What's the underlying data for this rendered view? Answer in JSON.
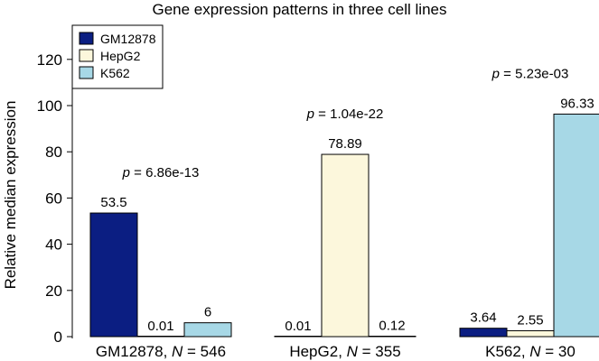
{
  "chart_data": {
    "type": "bar",
    "title": "Gene expression patterns in three cell lines",
    "xlabel": "",
    "ylabel": "Relative median expression",
    "ylim": [
      0,
      130
    ],
    "yticks": [
      0,
      20,
      40,
      60,
      80,
      100,
      120
    ],
    "grid": false,
    "legend_position": "top-left",
    "categories": [
      {
        "name": "GM12878",
        "n_label": "N",
        "n_value": "546",
        "pvalue_prefix": "p",
        "pvalue": "6.86e-13"
      },
      {
        "name": "HepG2",
        "n_label": "N",
        "n_value": "355",
        "pvalue_prefix": "p",
        "pvalue": "1.04e-22"
      },
      {
        "name": "K562",
        "n_label": "N",
        "n_value": "30",
        "pvalue_prefix": "p",
        "pvalue": "5.23e-03"
      }
    ],
    "series": [
      {
        "name": "GM12878",
        "color": "#0b1e82",
        "values": [
          53.5,
          0.01,
          3.64
        ],
        "labels": [
          "53.5",
          "0.01",
          "3.64"
        ]
      },
      {
        "name": "HepG2",
        "color": "#fcf7dc",
        "values": [
          0.01,
          78.89,
          2.55
        ],
        "labels": [
          "0.01",
          "78.89",
          "2.55"
        ]
      },
      {
        "name": "K562",
        "color": "#a7d8e6",
        "values": [
          6,
          0.12,
          96.33
        ],
        "labels": [
          "6",
          "0.12",
          "96.33"
        ]
      }
    ]
  }
}
